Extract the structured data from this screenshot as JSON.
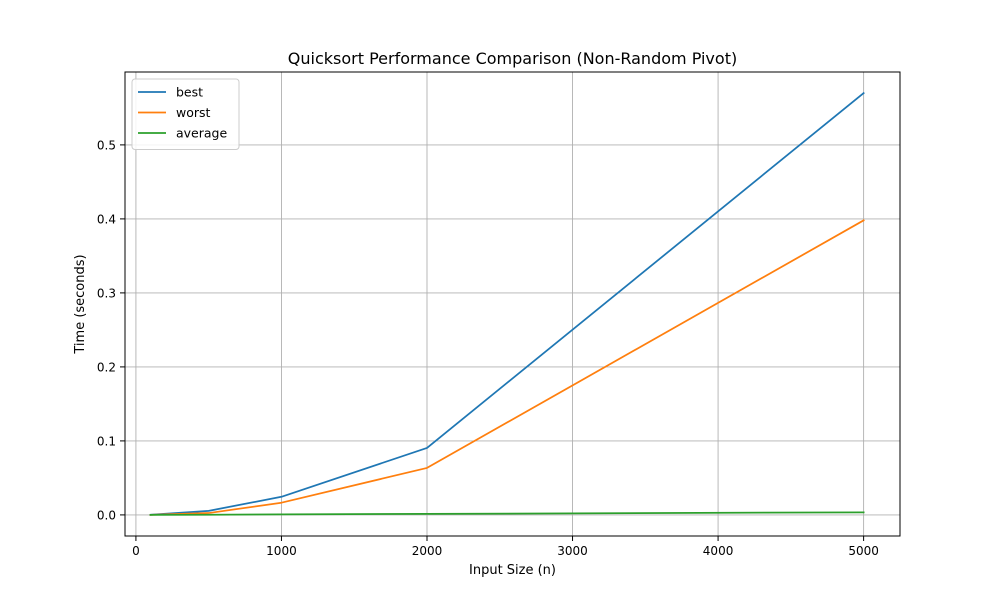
{
  "chart_data": {
    "type": "line",
    "title": "Quicksort Performance Comparison (Non-Random Pivot)",
    "xlabel": "Input Size (n)",
    "ylabel": "Time (seconds)",
    "xlim": [
      -75,
      5250
    ],
    "ylim": [
      -0.0285,
      0.5985
    ],
    "xticks": [
      0,
      1000,
      2000,
      3000,
      4000,
      5000
    ],
    "xtick_labels": [
      "0",
      "1000",
      "2000",
      "3000",
      "4000",
      "5000"
    ],
    "yticks": [
      0.0,
      0.1,
      0.2,
      0.3,
      0.4,
      0.5
    ],
    "ytick_labels": [
      "0.0",
      "0.1",
      "0.2",
      "0.3",
      "0.4",
      "0.5"
    ],
    "grid": true,
    "legend_position": "upper-left",
    "x": [
      100,
      500,
      1000,
      2000,
      5000
    ],
    "series": [
      {
        "name": "best",
        "color": "#1f77b4",
        "values": [
          0.0002,
          0.0055,
          0.0245,
          0.0905,
          0.57
        ]
      },
      {
        "name": "worst",
        "color": "#ff7f0e",
        "values": [
          0.0001,
          0.0025,
          0.0165,
          0.0635,
          0.398
        ]
      },
      {
        "name": "average",
        "color": "#2ca02c",
        "values": [
          0.0001,
          0.0003,
          0.0007,
          0.0014,
          0.0035
        ]
      }
    ]
  }
}
